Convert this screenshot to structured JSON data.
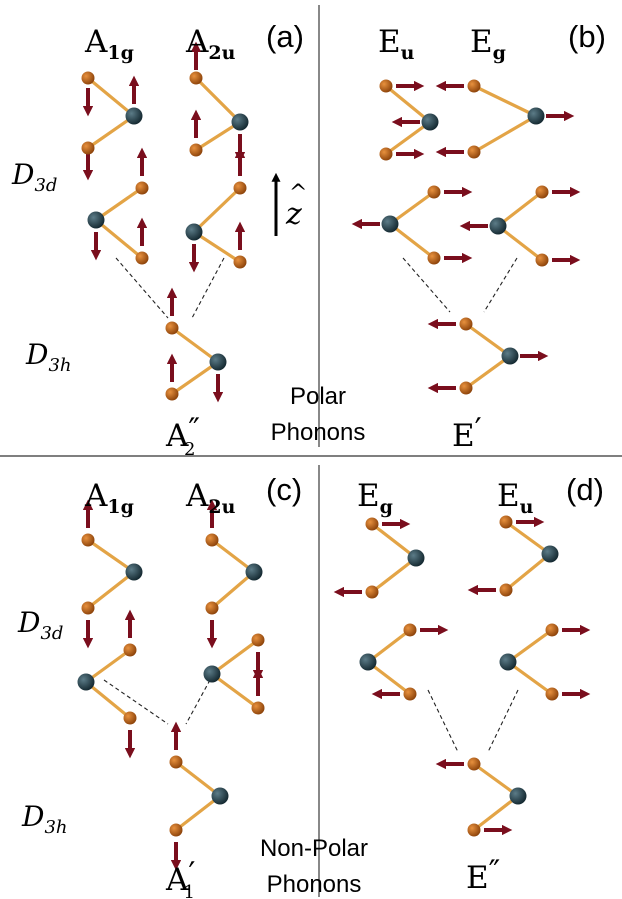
{
  "panels": [
    {
      "tag": "(a)",
      "modes": [
        {
          "base": "A",
          "sub": "1g"
        },
        {
          "base": "A",
          "sub": "2u"
        }
      ],
      "group_top": {
        "base": "D",
        "sub": "3d"
      },
      "group_bottom": {
        "base": "D",
        "sub": "3h"
      },
      "merged": {
        "base": "A",
        "prime": "″",
        "sub": "2"
      }
    },
    {
      "tag": "(b)",
      "modes": [
        {
          "base": "E",
          "sub": "u"
        },
        {
          "base": "E",
          "sub": "g"
        }
      ],
      "merged": {
        "base": "E",
        "prime": "′",
        "sub": ""
      }
    },
    {
      "tag": "(c)",
      "modes": [
        {
          "base": "A",
          "sub": "1g"
        },
        {
          "base": "A",
          "sub": "2u"
        }
      ],
      "group_top": {
        "base": "D",
        "sub": "3d"
      },
      "group_bottom": {
        "base": "D",
        "sub": "3h"
      },
      "merged": {
        "base": "A",
        "prime": "′",
        "sub": "1"
      }
    },
    {
      "tag": "(d)",
      "modes": [
        {
          "base": "E",
          "sub": "g"
        },
        {
          "base": "E",
          "sub": "u"
        }
      ],
      "merged": {
        "base": "E",
        "prime": "″",
        "sub": ""
      }
    }
  ],
  "top_caption": [
    "Polar",
    "Phonons"
  ],
  "bottom_caption": [
    "Non-Polar",
    "Phonons"
  ],
  "axis_label": "z",
  "axis_hat": "^",
  "colors": {
    "bond": "#e3a446",
    "outer_atom": "#b45a12",
    "center_atom": "#1f3944",
    "arrow": "#7a0e1d",
    "divider": "#555555",
    "text": "#000000"
  }
}
